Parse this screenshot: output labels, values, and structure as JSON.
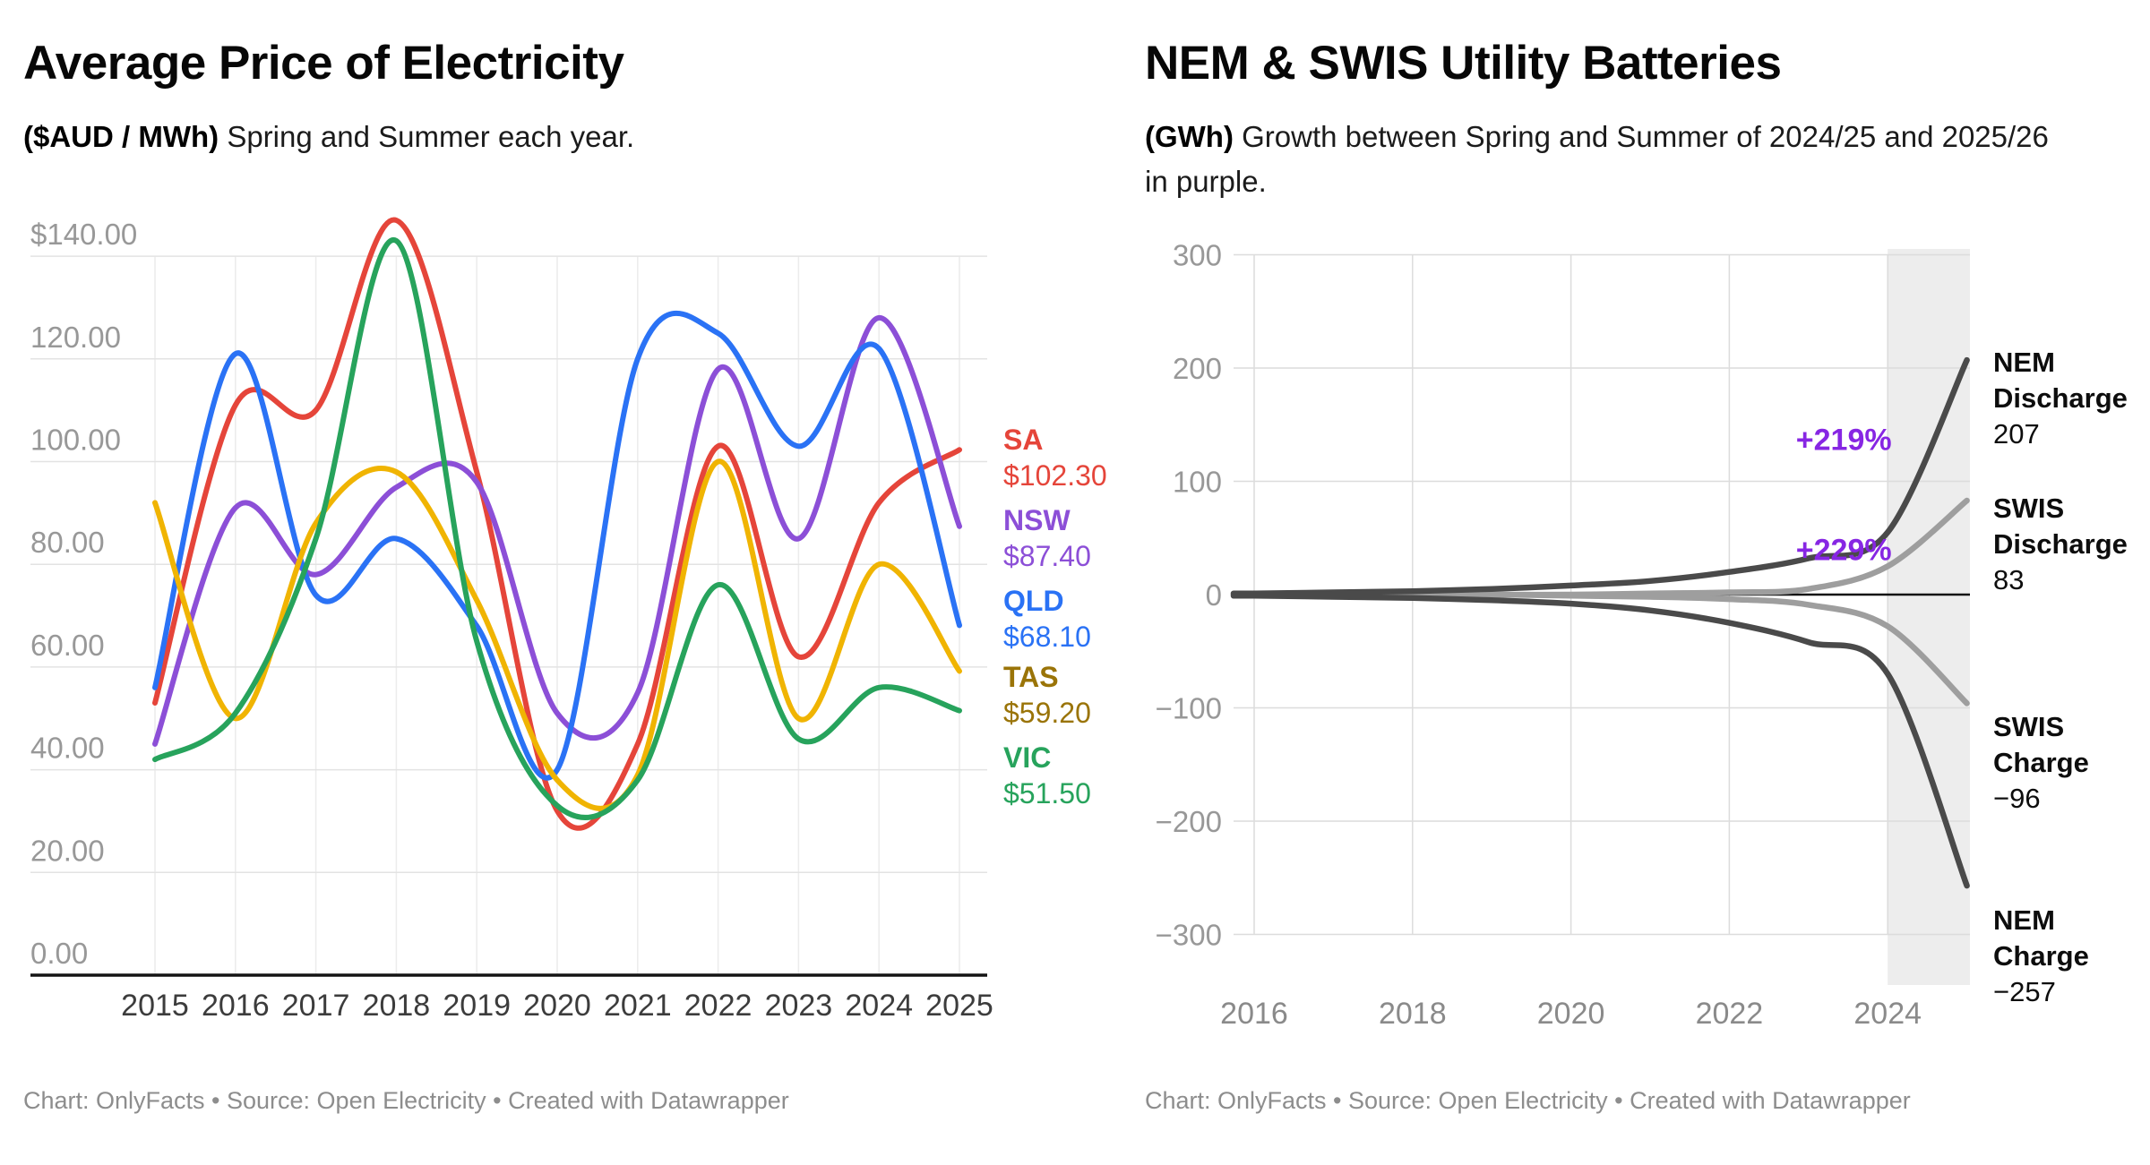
{
  "chart_data": [
    {
      "type": "line",
      "title": "Average Price of Electricity",
      "subtitle_bold": "($AUD / MWh)",
      "subtitle": "Spring and Summer each year.",
      "footer": "Chart: OnlyFacts • Source: Open Electricity • Created with Datawrapper",
      "x": [
        2015,
        2016,
        2017,
        2018,
        2019,
        2020,
        2021,
        2022,
        2023,
        2024,
        2025
      ],
      "xtick_labels": [
        "2015",
        "2016",
        "2017",
        "2018",
        "2019",
        "2020",
        "2021",
        "2022",
        "2023",
        "2024",
        "2025"
      ],
      "ylim": [
        0,
        140
      ],
      "ytick_step": 20,
      "ytick_labels": [
        "$140.00",
        "120.00",
        "100.00",
        "80.00",
        "60.00",
        "40.00",
        "20.00",
        "0.00"
      ],
      "grid": true,
      "legend_position": "right",
      "series": [
        {
          "name": "SA",
          "color": "#e5453a",
          "label_value": "$102.30",
          "values": [
            53,
            111,
            110,
            147,
            98,
            32,
            45,
            103,
            62,
            92,
            102.3
          ]
        },
        {
          "name": "NSW",
          "color": "#8c4fd7",
          "label_value": "$87.40",
          "values": [
            45,
            91,
            78,
            95,
            96,
            51,
            55,
            118,
            85,
            128,
            87.4
          ]
        },
        {
          "name": "QLD",
          "color": "#2a72f5",
          "label_value": "$68.10",
          "values": [
            56,
            121,
            74,
            85,
            68,
            40,
            120,
            125,
            103,
            122,
            68.1
          ]
        },
        {
          "name": "TAS",
          "color": "#f0b402",
          "label_color": "#9a7408",
          "label_value": "$59.20",
          "values": [
            92,
            50,
            88,
            98,
            73,
            38,
            39,
            100,
            50,
            80,
            59.2
          ]
        },
        {
          "name": "VIC",
          "color": "#27a35c",
          "label_value": "$51.50",
          "values": [
            42,
            51,
            85,
            143,
            65,
            33,
            38,
            76,
            46,
            56,
            51.5
          ]
        }
      ]
    },
    {
      "type": "line",
      "title": "NEM & SWIS Utility Batteries",
      "subtitle_bold": "(GWh)",
      "subtitle": "Growth between Spring and Summer of 2024/25 and 2025/26 in purple.",
      "footer": "Chart: OnlyFacts • Source: Open Electricity • Created with Datawrapper",
      "x": [
        2016,
        2017,
        2018,
        2019,
        2020,
        2021,
        2022,
        2023,
        2024,
        2025
      ],
      "xtick_labels": [
        "2016",
        "2018",
        "2020",
        "2022",
        "2024"
      ],
      "ylim": [
        -300,
        300
      ],
      "ytick_step": 100,
      "ytick_labels": [
        "300",
        "200",
        "100",
        "0",
        "−100",
        "−200",
        "−300"
      ],
      "grid": true,
      "highlight_band": {
        "from": 2024,
        "to": 2025
      },
      "annotations": [
        {
          "text": "+219%",
          "color": "#8726e3",
          "x": 2024.05,
          "y": 137
        },
        {
          "text": "+229%",
          "color": "#8726e3",
          "x": 2024.05,
          "y": 40
        }
      ],
      "series": [
        {
          "name": "NEM Discharge",
          "label_lines": [
            "NEM",
            "Discharge"
          ],
          "value_label": "207",
          "color": "#4a4a4a",
          "values": [
            1,
            2,
            3,
            5,
            8,
            12,
            20,
            32,
            55,
            207
          ]
        },
        {
          "name": "SWIS Discharge",
          "label_lines": [
            "SWIS",
            "Discharge"
          ],
          "value_label": "83",
          "color": "#9e9e9e",
          "values": [
            0,
            0,
            0,
            0,
            0,
            1,
            2,
            5,
            25,
            83
          ]
        },
        {
          "name": "SWIS Charge",
          "label_lines": [
            "SWIS",
            "Charge"
          ],
          "value_label": "−96",
          "color": "#9e9e9e",
          "values": [
            0,
            0,
            0,
            0,
            -1,
            -2,
            -4,
            -9,
            -28,
            -96
          ]
        },
        {
          "name": "NEM Charge",
          "label_lines": [
            "NEM",
            "Charge"
          ],
          "value_label": "−257",
          "color": "#4a4a4a",
          "values": [
            -1,
            -2,
            -3,
            -5,
            -8,
            -14,
            -25,
            -42,
            -70,
            -257
          ]
        }
      ]
    }
  ]
}
